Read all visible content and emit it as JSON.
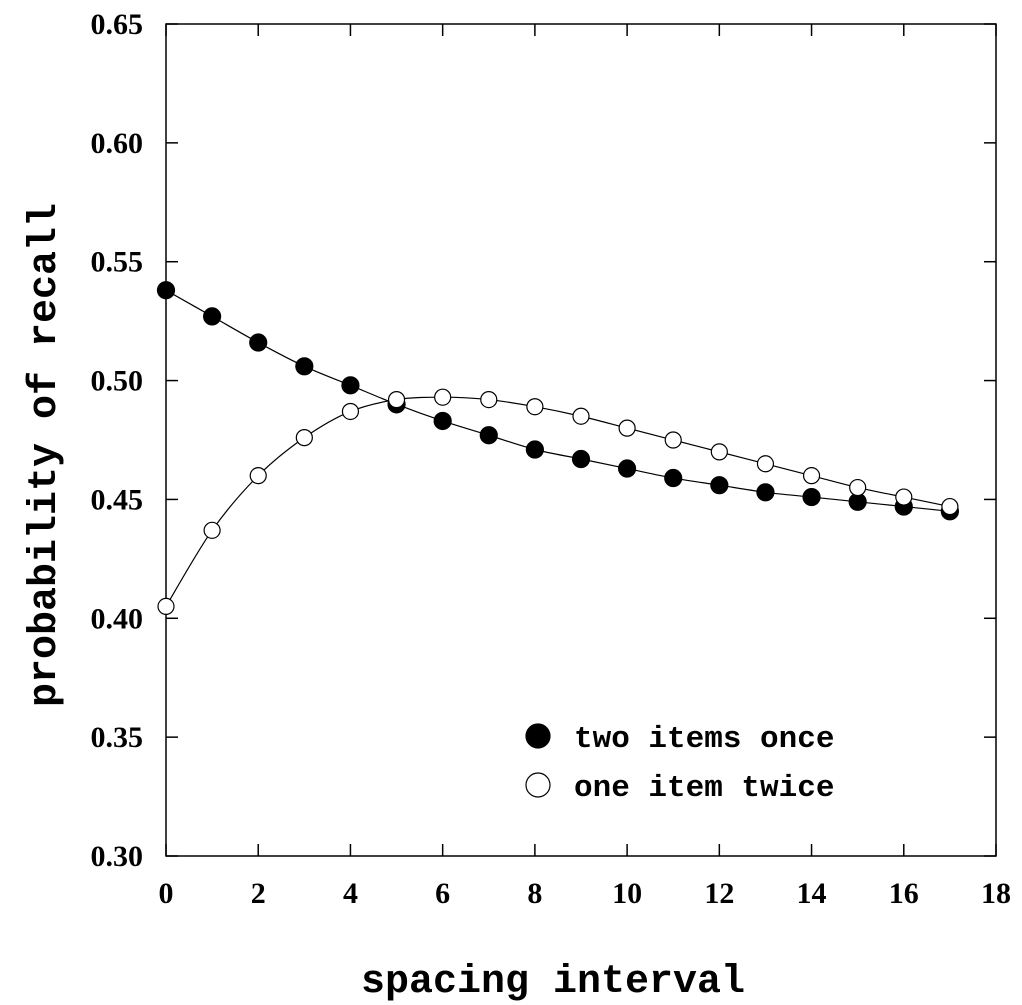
{
  "chart_data": {
    "type": "line",
    "title": "",
    "xlabel": "spacing interval",
    "ylabel": "probability of recall",
    "xlim": [
      0,
      18
    ],
    "ylim": [
      0.3,
      0.65
    ],
    "xticks": [
      0,
      2,
      4,
      6,
      8,
      10,
      12,
      14,
      16,
      18
    ],
    "xtick_labels": [
      "0",
      "2",
      "4",
      "6",
      "8",
      "10",
      "12",
      "14",
      "16",
      "18"
    ],
    "yticks": [
      0.3,
      0.35,
      0.4,
      0.45,
      0.5,
      0.55,
      0.6,
      0.65
    ],
    "ytick_labels": [
      "0.30",
      "0.35",
      "0.40",
      "0.45",
      "0.50",
      "0.55",
      "0.60",
      "0.65"
    ],
    "grid": false,
    "legend_position": "bottom-right",
    "x": [
      0,
      1,
      2,
      3,
      4,
      5,
      6,
      7,
      8,
      9,
      10,
      11,
      12,
      13,
      14,
      15,
      16,
      17
    ],
    "series": [
      {
        "name": "two items once",
        "marker": "filled-circle",
        "color": "#000000",
        "values": [
          0.538,
          0.527,
          0.516,
          0.506,
          0.498,
          0.49,
          0.483,
          0.477,
          0.471,
          0.467,
          0.463,
          0.459,
          0.456,
          0.453,
          0.451,
          0.449,
          0.447,
          0.445
        ]
      },
      {
        "name": "one item twice",
        "marker": "open-circle",
        "color": "#000000",
        "values": [
          0.405,
          0.437,
          0.46,
          0.476,
          0.487,
          0.492,
          0.493,
          0.492,
          0.489,
          0.485,
          0.48,
          0.475,
          0.47,
          0.465,
          0.46,
          0.455,
          0.451,
          0.447
        ]
      }
    ]
  }
}
